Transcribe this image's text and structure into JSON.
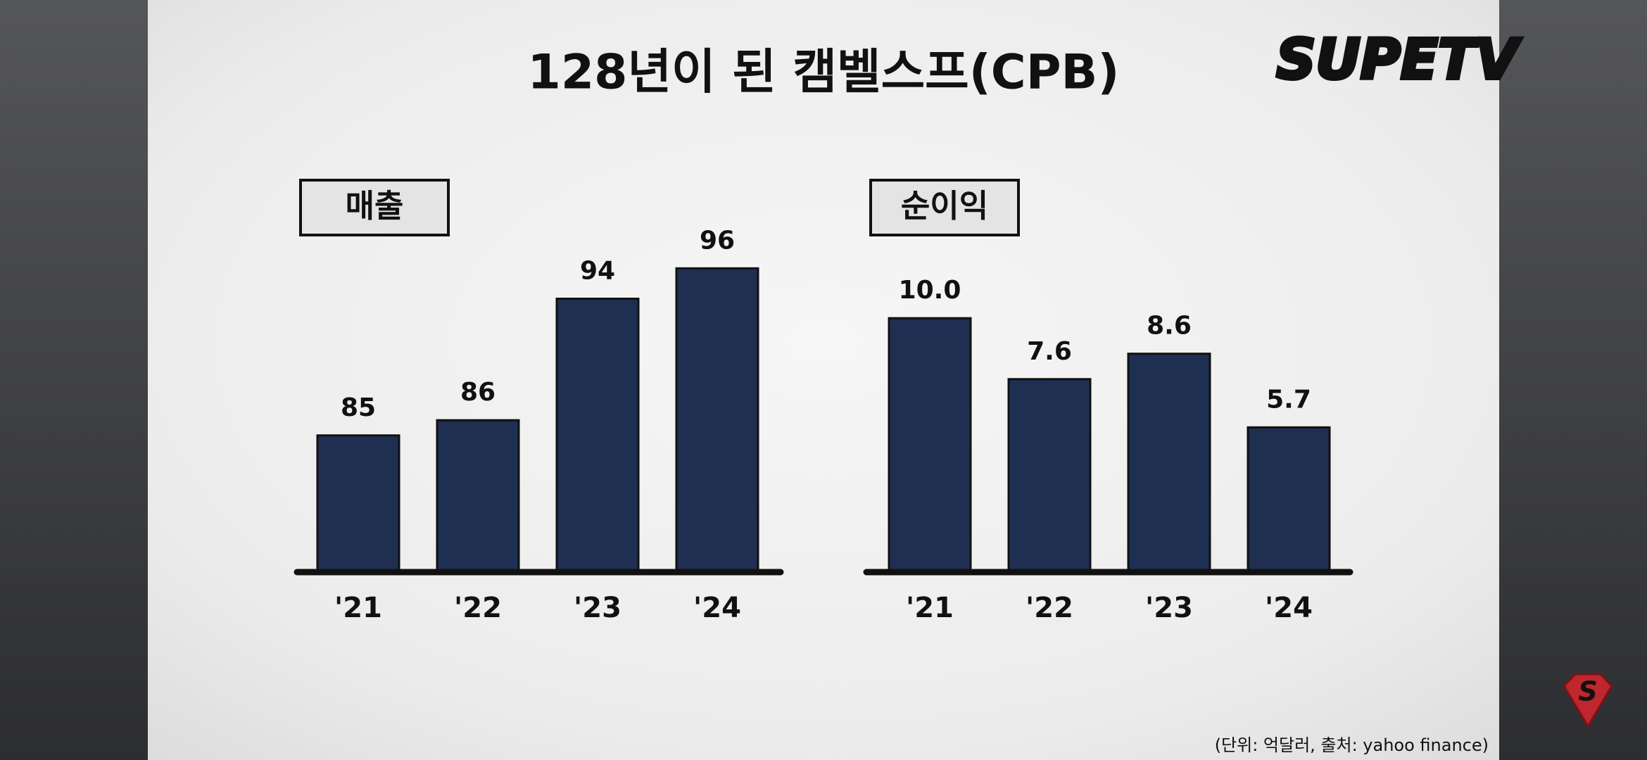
{
  "title": "128년이 된 캠벨스프(CPB)",
  "logo": "SUPETV",
  "note": "(단위: 억달러, 출처: yahoo finance)",
  "chart_data": [
    {
      "type": "bar",
      "title": "매출",
      "categories": [
        "'21",
        "'22",
        "'23",
        "'24"
      ],
      "values": [
        85,
        86,
        94,
        96
      ],
      "color": "#1e2f52",
      "ylim": [
        76,
        100
      ]
    },
    {
      "type": "bar",
      "title": "순이익",
      "categories": [
        "'21",
        "'22",
        "'23",
        "'24"
      ],
      "values": [
        10.0,
        7.6,
        8.6,
        5.7
      ],
      "value_labels": [
        "10.0",
        "7.6",
        "8.6",
        "5.7"
      ],
      "color": "#1e2f52",
      "ylim": [
        0,
        12
      ]
    }
  ]
}
